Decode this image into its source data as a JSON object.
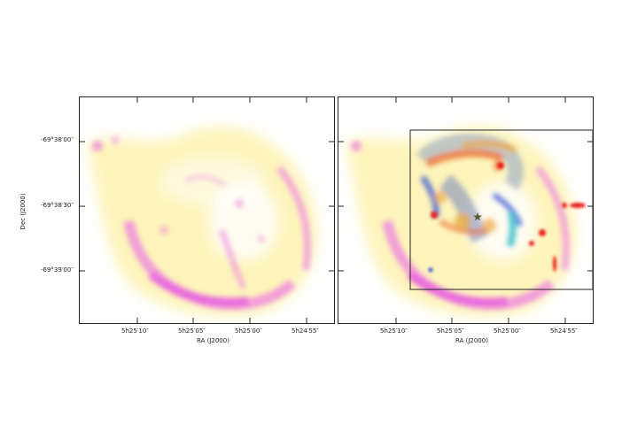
{
  "figure": {
    "ylabel": "Dec (J2000)",
    "left_panel": {
      "xlabel": "RA (J2000)",
      "x_ticks": [
        "5h25′10″",
        "5h25′05″",
        "5h25′00″",
        "5h24′55″"
      ],
      "y_ticks": [
        "-69°38′00″",
        "-69°38′30″",
        "-69°39′00″"
      ]
    },
    "right_panel": {
      "xlabel": "RA (J2000)",
      "x_ticks": [
        "5h25′10″",
        "5h25′05″",
        "5h25′00″",
        "5h24′55″"
      ],
      "inset_box": true,
      "marker": "star"
    },
    "colors": {
      "diffuse_yellow": "#fdf3b0",
      "pink": "#f08be0",
      "magenta": "#e65adf",
      "red": "#e8241a",
      "blue": "#2a4fd6",
      "cyan": "#29b8c9"
    }
  }
}
